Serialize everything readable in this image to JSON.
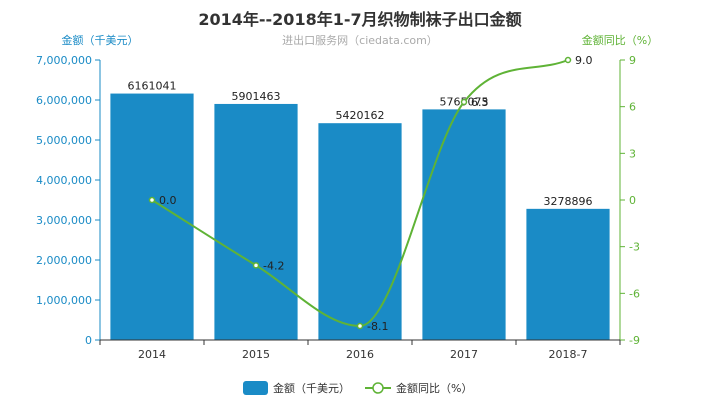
{
  "chart_data": {
    "type": "bar",
    "title": "2014年--2018年1-7月织物制袜子出口金额",
    "subtitle": "进出口服务网（ciedata.com）",
    "categories": [
      "2014",
      "2015",
      "2016",
      "2017",
      "2018-7"
    ],
    "series": [
      {
        "name": "金额（千美元）",
        "type": "bar",
        "axis": "left",
        "values": [
          6161041,
          5901463,
          5420162,
          5765075,
          3278896
        ],
        "labels": [
          "6161041",
          "5901463",
          "5420162",
          "5765075",
          "3278896"
        ]
      },
      {
        "name": "金额同比（%）",
        "type": "line",
        "axis": "right",
        "values": [
          0.0,
          -4.2,
          -8.1,
          6.3,
          9.0
        ],
        "labels": [
          "0.0",
          "-4.2",
          "-8.1",
          "6.3",
          "9.0"
        ]
      }
    ],
    "y_left": {
      "label": "金额（千美元）",
      "min": 0,
      "max": 7000000,
      "ticks": [
        "0",
        "1,000,000",
        "2,000,000",
        "3,000,000",
        "4,000,000",
        "5,000,000",
        "6,000,000",
        "7,000,000"
      ]
    },
    "y_right": {
      "label": "金额同比（%）",
      "min": -9,
      "max": 9,
      "ticks": [
        "-9",
        "-6",
        "-3",
        "0",
        "3",
        "6",
        "9"
      ]
    },
    "legend": {
      "position": "bottom",
      "items": [
        "金额（千美元）",
        "金额同比（%）"
      ]
    },
    "colors": {
      "bar": "#1a8bc6",
      "line": "#5fb336",
      "left_axis": "#1a8bc6",
      "right_axis": "#5fb336"
    }
  }
}
